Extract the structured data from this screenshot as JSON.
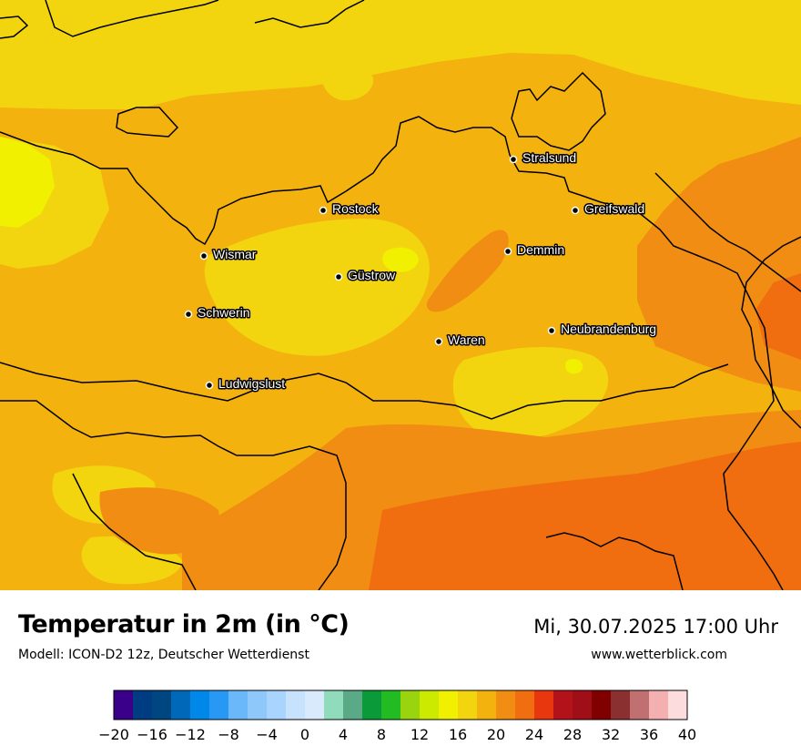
{
  "map": {
    "title": "Temperatur in 2m (in °C)",
    "model": "Modell: ICON-D2 12z, Deutscher Wetterdienst",
    "datetime": "Mi, 30.07.2025 17:00 Uhr",
    "website": "www.wetterblick.com",
    "base_color": "#f4b20e",
    "colors": {
      "t18": "#f2d50f",
      "t16": "#f0f000",
      "t22": "#f08d12",
      "t24": "#f06e0f",
      "outline": "#000000",
      "marker": "#000000"
    },
    "cities": [
      {
        "name": "Stralsund"
      },
      {
        "name": "Rostock"
      },
      {
        "name": "Greifswald"
      },
      {
        "name": "Wismar"
      },
      {
        "name": "Demmin"
      },
      {
        "name": "Güstrow"
      },
      {
        "name": "Schwerin"
      },
      {
        "name": "Neubrandenburg"
      },
      {
        "name": "Waren"
      },
      {
        "name": "Ludwigslust"
      }
    ]
  },
  "legend": {
    "colors": [
      "#3a0089",
      "#003c82",
      "#004680",
      "#0068b8",
      "#0088e8",
      "#2898f5",
      "#6ab7fa",
      "#8ec8fb",
      "#a8d4fd",
      "#c6e2fd",
      "#daeafd",
      "#8fdbbb",
      "#5aaa88",
      "#0a9a3a",
      "#22bb22",
      "#9ad40f",
      "#ccea00",
      "#f0f000",
      "#f2d50f",
      "#f4b20e",
      "#f08d12",
      "#f06e0f",
      "#e8370f",
      "#b4121a",
      "#a00e18",
      "#800000",
      "#8a3030",
      "#c07070",
      "#f4b0b0",
      "#fcdcdc"
    ],
    "ticks": [
      "−20",
      "−16",
      "−12",
      "−8",
      "−4",
      "0",
      "4",
      "8",
      "12",
      "16",
      "20",
      "24",
      "28",
      "32",
      "36",
      "40"
    ],
    "min": -20,
    "max": 40
  }
}
